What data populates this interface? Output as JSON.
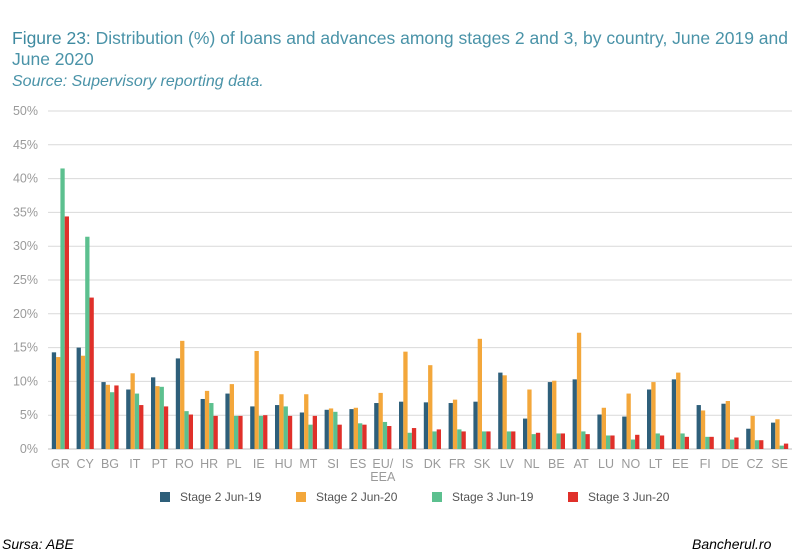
{
  "header": {
    "title_lead": "Figure 23:",
    "title_rest": " Distribution (%) of loans and advances among stages 2 and 3, by country, June 2019 and June 2020",
    "source": "Source: Supervisory reporting data."
  },
  "footer": {
    "left": "Sursa: ABE",
    "right": "Bancherul.ro"
  },
  "colors": {
    "stage2_jun19": "#2e5f7a",
    "stage2_jun20": "#f3a73b",
    "stage3_jun19": "#5cc08f",
    "stage3_jun20": "#e0302a",
    "grid": "#d9d9d9",
    "axis_text": "#9a9a9a"
  },
  "chart_data": {
    "type": "bar",
    "title": "",
    "xlabel": "",
    "ylabel": "",
    "ylim": [
      0,
      50
    ],
    "yticks": [
      "0%",
      "5%",
      "10%",
      "15%",
      "20%",
      "25%",
      "30%",
      "35%",
      "40%",
      "45%",
      "50%"
    ],
    "grid": true,
    "legend_position": "bottom",
    "categories": [
      "GR",
      "CY",
      "BG",
      "IT",
      "PT",
      "RO",
      "HR",
      "PL",
      "IE",
      "HU",
      "MT",
      "SI",
      "ES",
      "EU/\nEEA",
      "IS",
      "DK",
      "FR",
      "SK",
      "LV",
      "NL",
      "BE",
      "AT",
      "LU",
      "NO",
      "LT",
      "EE",
      "FI",
      "DE",
      "CZ",
      "SE"
    ],
    "series": [
      {
        "name": "Stage 2 Jun-19",
        "values": [
          14.3,
          15.0,
          9.9,
          8.8,
          10.6,
          13.4,
          7.4,
          8.2,
          6.3,
          6.5,
          5.4,
          5.8,
          5.9,
          6.8,
          7.0,
          6.9,
          6.8,
          7.0,
          11.3,
          4.5,
          9.9,
          10.3,
          5.1,
          4.8,
          8.8,
          10.3,
          6.5,
          6.7,
          3.0,
          3.9
        ]
      },
      {
        "name": "Stage 2 Jun-20",
        "values": [
          13.6,
          13.8,
          9.5,
          11.2,
          9.3,
          16.0,
          8.6,
          9.6,
          14.5,
          8.1,
          8.1,
          6.0,
          6.1,
          8.3,
          14.4,
          12.4,
          7.3,
          16.3,
          10.9,
          8.8,
          10.1,
          17.2,
          6.1,
          8.2,
          9.9,
          11.3,
          5.7,
          7.1,
          4.9,
          4.4
        ]
      },
      {
        "name": "Stage 3 Jun-19",
        "values": [
          41.5,
          31.4,
          8.4,
          8.2,
          9.2,
          5.6,
          6.8,
          4.9,
          4.9,
          6.3,
          3.6,
          5.5,
          3.8,
          4.0,
          2.4,
          2.6,
          2.9,
          2.6,
          2.6,
          2.2,
          2.3,
          2.6,
          2.0,
          1.4,
          2.3,
          2.3,
          1.8,
          1.4,
          1.3,
          0.5
        ]
      },
      {
        "name": "Stage 3 Jun-20",
        "values": [
          34.4,
          22.4,
          9.4,
          6.5,
          6.3,
          5.1,
          4.9,
          4.9,
          5.0,
          4.9,
          4.9,
          3.6,
          3.6,
          3.4,
          3.1,
          2.9,
          2.6,
          2.6,
          2.6,
          2.4,
          2.3,
          2.2,
          2.0,
          2.1,
          2.0,
          1.8,
          1.8,
          1.7,
          1.3,
          0.8
        ]
      }
    ]
  }
}
